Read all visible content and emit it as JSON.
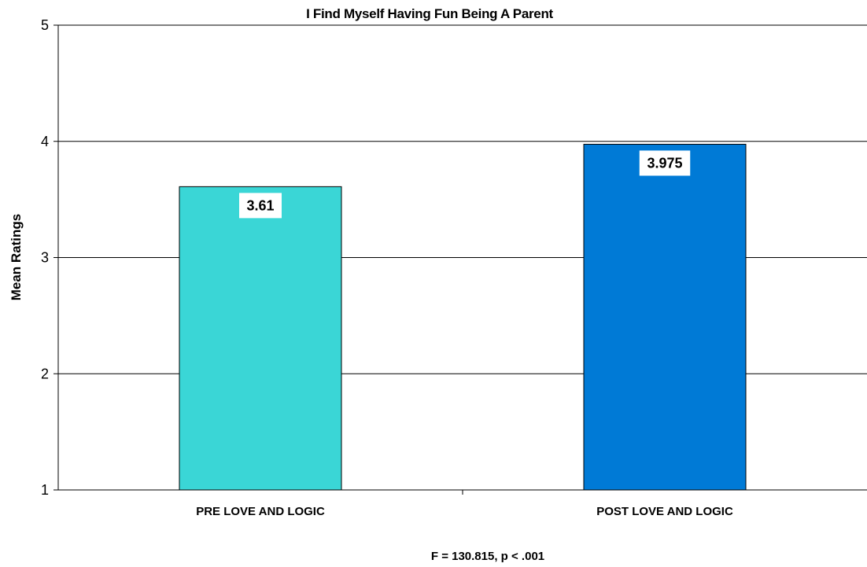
{
  "chart_data": {
    "type": "bar",
    "title": "I Find Myself Having Fun Being A Parent",
    "xlabel": "",
    "ylabel": "Mean Ratings",
    "categories": [
      "PRE LOVE AND LOGIC",
      "POST LOVE AND LOGIC"
    ],
    "values": [
      3.61,
      3.975
    ],
    "data_labels": [
      "3.61",
      "3.975"
    ],
    "colors": [
      "#3AD6D6",
      "#007AD6"
    ],
    "ylim": [
      1,
      5
    ],
    "yticks": [
      1,
      2,
      3,
      4,
      5
    ],
    "ytick_labels": [
      "1",
      "2",
      "3",
      "4",
      "5"
    ],
    "grid": true,
    "legend": "none",
    "annotation": "F = 130.815, p < .001"
  }
}
